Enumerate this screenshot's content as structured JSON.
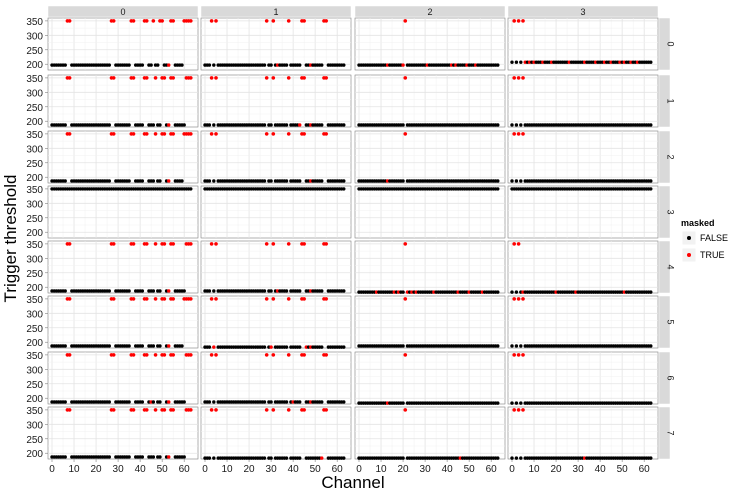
{
  "chart_data": {
    "type": "scatter",
    "facet_layout": "grid",
    "col_facets": [
      "0",
      "1",
      "2",
      "3"
    ],
    "row_facets": [
      "0",
      "1",
      "2",
      "3",
      "4",
      "5",
      "6",
      "7"
    ],
    "xlabel": "Channel",
    "ylabel": "Trigger threshold",
    "xlim": [
      0,
      64
    ],
    "ylim": [
      180,
      360
    ],
    "x_ticks": [
      "0",
      "10",
      "20",
      "30",
      "40",
      "50",
      "60"
    ],
    "y_ticks": [
      "200",
      "250",
      "300",
      "350"
    ],
    "grid": true,
    "legend": {
      "title": "masked",
      "position": "right",
      "entries": [
        {
          "label": "FALSE",
          "color": "#000000"
        },
        {
          "label": "TRUE",
          "color": "#ff0000"
        }
      ]
    },
    "cells": [
      {
        "row": "0",
        "col": "0",
        "baseline": 197,
        "masked_high": [
          7,
          8,
          27,
          28,
          36,
          37,
          42,
          43,
          46,
          49,
          50,
          54,
          55,
          60,
          61,
          62,
          63
        ],
        "masked_base": [
          53
        ]
      },
      {
        "row": "0",
        "col": "1",
        "baseline": 197,
        "masked_high": [
          3,
          5,
          28,
          31,
          38,
          44,
          45,
          54,
          55
        ],
        "masked_base": [
          33,
          48
        ]
      },
      {
        "row": "0",
        "col": "2",
        "baseline": 197,
        "masked_high": [
          21
        ],
        "masked_base": [
          13,
          20,
          31,
          42,
          44,
          49,
          53
        ]
      },
      {
        "row": "0",
        "col": "3",
        "baseline": 207,
        "masked_high": [
          1,
          3,
          5
        ],
        "masked_base": [
          6,
          8,
          10,
          14,
          18,
          26,
          33,
          38,
          42,
          45,
          49,
          51,
          54,
          57
        ]
      },
      {
        "row": "1",
        "col": "0",
        "baseline": 187,
        "masked_high": [
          7,
          8,
          27,
          28,
          36,
          37,
          42,
          43,
          47,
          50,
          51,
          54,
          55,
          61,
          62,
          63
        ],
        "masked_base": [
          53
        ]
      },
      {
        "row": "1",
        "col": "1",
        "baseline": 187,
        "masked_high": [
          3,
          5,
          28,
          31,
          38,
          44,
          45,
          54,
          55
        ],
        "masked_base": [
          31,
          43,
          48
        ]
      },
      {
        "row": "1",
        "col": "2",
        "baseline": 187,
        "masked_high": [
          21
        ],
        "masked_base": []
      },
      {
        "row": "1",
        "col": "3",
        "baseline": 187,
        "masked_high": [
          1,
          3,
          5
        ],
        "masked_base": []
      },
      {
        "row": "2",
        "col": "0",
        "baseline": 187,
        "masked_high": [
          7,
          8,
          27,
          28,
          36,
          37,
          42,
          43,
          47,
          50,
          51,
          54,
          55,
          60,
          61,
          62,
          63
        ],
        "masked_base": [
          53
        ]
      },
      {
        "row": "2",
        "col": "1",
        "baseline": 187,
        "masked_high": [
          3,
          5,
          28,
          31,
          38,
          44,
          45,
          54,
          55
        ],
        "masked_base": [
          48
        ]
      },
      {
        "row": "2",
        "col": "2",
        "baseline": 187,
        "masked_high": [
          21
        ],
        "masked_base": [
          13
        ]
      },
      {
        "row": "2",
        "col": "3",
        "baseline": 187,
        "masked_high": [
          1,
          3,
          5
        ],
        "masked_base": []
      },
      {
        "row": "3",
        "col": "0",
        "baseline": 350,
        "masked_high": [],
        "masked_base": []
      },
      {
        "row": "3",
        "col": "1",
        "baseline": 350,
        "masked_high": [],
        "masked_base": []
      },
      {
        "row": "3",
        "col": "2",
        "baseline": 350,
        "masked_high": [],
        "masked_base": []
      },
      {
        "row": "3",
        "col": "3",
        "baseline": 350,
        "masked_high": [],
        "masked_base": []
      },
      {
        "row": "4",
        "col": "0",
        "baseline": 187,
        "masked_high": [
          7,
          8,
          27,
          28,
          36,
          37,
          42,
          43,
          47,
          50,
          51,
          54,
          55,
          61,
          62,
          63
        ],
        "masked_base": [
          53
        ]
      },
      {
        "row": "4",
        "col": "1",
        "baseline": 187,
        "masked_high": [
          3,
          5,
          28,
          31,
          38,
          44,
          45,
          54,
          55
        ],
        "masked_base": [
          33,
          48
        ]
      },
      {
        "row": "4",
        "col": "2",
        "baseline": 183,
        "masked_high": [
          21
        ],
        "masked_base": [
          8,
          16,
          18,
          22,
          24,
          26,
          34,
          45,
          50,
          56
        ]
      },
      {
        "row": "4",
        "col": "3",
        "baseline": 183,
        "masked_high": [
          1,
          3
        ],
        "masked_base": [
          5,
          20,
          29,
          51
        ]
      },
      {
        "row": "5",
        "col": "0",
        "baseline": 187,
        "masked_high": [
          7,
          8,
          27,
          28,
          36,
          37,
          42,
          43,
          47,
          50,
          51,
          54,
          55,
          60,
          61,
          62,
          63
        ],
        "masked_base": [
          47,
          53
        ]
      },
      {
        "row": "5",
        "col": "1",
        "baseline": 183,
        "masked_high": [
          3,
          5,
          28,
          31,
          38,
          44,
          45,
          54,
          55
        ],
        "masked_base": [
          4,
          30,
          46,
          48
        ]
      },
      {
        "row": "5",
        "col": "2",
        "baseline": 187,
        "masked_high": [
          21
        ],
        "masked_base": []
      },
      {
        "row": "5",
        "col": "3",
        "baseline": 187,
        "masked_high": [
          1,
          3,
          5
        ],
        "masked_base": []
      },
      {
        "row": "6",
        "col": "0",
        "baseline": 187,
        "masked_high": [
          7,
          8,
          27,
          28,
          36,
          37,
          42,
          43,
          47,
          50,
          51,
          54,
          55,
          61,
          62,
          63
        ],
        "masked_base": [
          45,
          53
        ]
      },
      {
        "row": "6",
        "col": "1",
        "baseline": 187,
        "masked_high": [
          3,
          5,
          28,
          31,
          38,
          44,
          45,
          54,
          55
        ],
        "masked_base": [
          40,
          48
        ]
      },
      {
        "row": "6",
        "col": "2",
        "baseline": 183,
        "masked_high": [
          21
        ],
        "masked_base": [
          13
        ]
      },
      {
        "row": "6",
        "col": "3",
        "baseline": 183,
        "masked_high": [
          1,
          3,
          5
        ],
        "masked_base": []
      },
      {
        "row": "7",
        "col": "0",
        "baseline": 187,
        "masked_high": [
          7,
          8,
          27,
          28,
          36,
          37,
          42,
          43,
          47,
          50,
          51,
          54,
          55,
          61,
          62,
          63
        ],
        "masked_base": [
          53
        ]
      },
      {
        "row": "7",
        "col": "1",
        "baseline": 183,
        "masked_high": [
          3,
          5,
          28,
          31,
          38,
          44,
          45,
          54,
          55
        ],
        "masked_base": [
          53
        ]
      },
      {
        "row": "7",
        "col": "2",
        "baseline": 183,
        "masked_high": [
          21
        ],
        "masked_base": [
          46
        ]
      },
      {
        "row": "7",
        "col": "3",
        "baseline": 183,
        "masked_high": [
          1,
          3,
          5
        ],
        "masked_base": [
          33
        ]
      }
    ]
  }
}
